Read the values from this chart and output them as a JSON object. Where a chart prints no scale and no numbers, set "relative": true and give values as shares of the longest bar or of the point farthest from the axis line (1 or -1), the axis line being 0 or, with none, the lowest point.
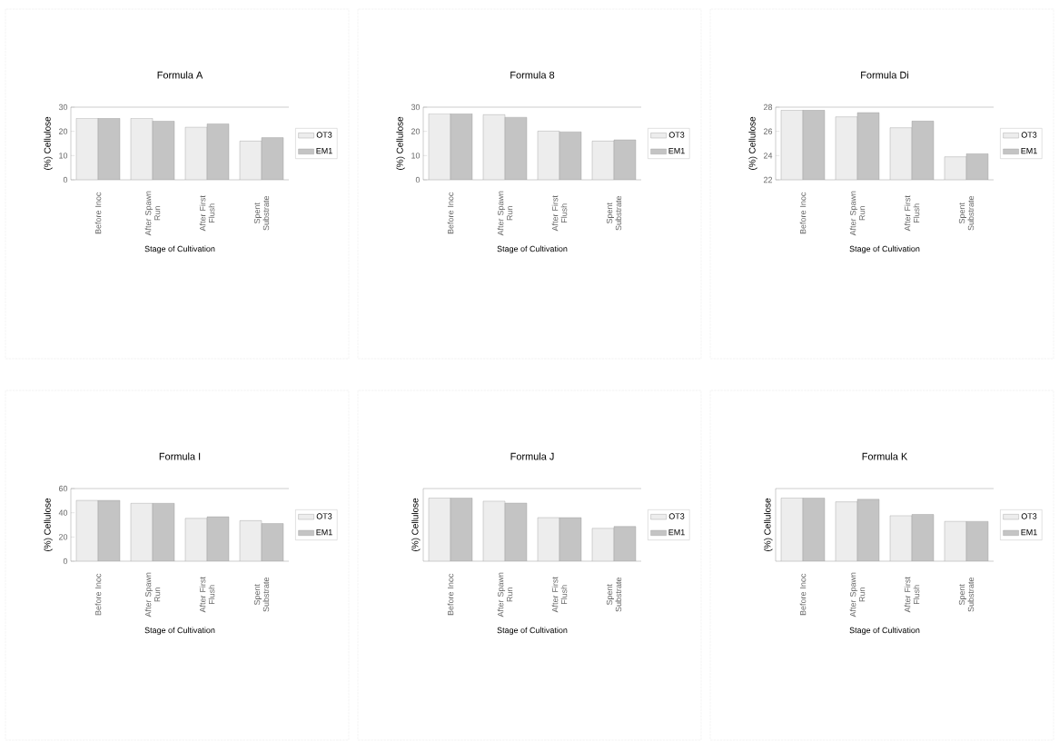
{
  "chart_data": [
    {
      "type": "bar",
      "title": "Formula A",
      "xlabel": "Stage of Cultivation",
      "ylabel": "(%) Cellulose",
      "categories": [
        "Before Inoc",
        "After Spawn Run",
        "After First Flush",
        "Spent Substrate"
      ],
      "legend": "right",
      "ylim": [
        0,
        30
      ],
      "yticks": [
        0,
        10,
        20,
        30
      ],
      "series": [
        {
          "name": "OT3",
          "color": "#ededed",
          "values": [
            25.4,
            25.4,
            21.7,
            16.0
          ]
        },
        {
          "name": "EM1",
          "color": "#c4c4c4",
          "values": [
            25.4,
            24.2,
            23.1,
            17.4
          ]
        }
      ]
    },
    {
      "type": "bar",
      "title": "Formula 8",
      "xlabel": "Stage of Cultivation",
      "ylabel": "(%) Cellulose",
      "categories": [
        "Before Inoc",
        "After Spawn Run",
        "After First Flush",
        "Spent Substrate"
      ],
      "legend": "right",
      "ylim": [
        0,
        30
      ],
      "yticks": [
        0,
        10,
        20,
        30
      ],
      "series": [
        {
          "name": "OT3",
          "color": "#ededed",
          "values": [
            27.3,
            26.9,
            20.1,
            16.0
          ]
        },
        {
          "name": "EM1",
          "color": "#c4c4c4",
          "values": [
            27.3,
            25.8,
            19.8,
            16.5
          ]
        }
      ]
    },
    {
      "type": "bar",
      "title": "Formula Di",
      "xlabel": "Stage of Cultivation",
      "ylabel": "(%) Cellulose",
      "categories": [
        "Before Inoc",
        "After Spawn Run",
        "After First Flush",
        "Spent Substrate"
      ],
      "legend": "right",
      "ylim": [
        22,
        28
      ],
      "yticks": [
        22,
        24,
        26,
        28
      ],
      "series": [
        {
          "name": "OT3",
          "color": "#ededed",
          "values": [
            27.75,
            27.2,
            26.3,
            23.9
          ]
        },
        {
          "name": "EM1",
          "color": "#c4c4c4",
          "values": [
            27.75,
            27.55,
            26.85,
            24.15
          ]
        }
      ]
    },
    {
      "type": "bar",
      "title": "Formula I",
      "xlabel": "Stage of Cultivation",
      "ylabel": "(%) Cellulose",
      "categories": [
        "Before Inoc",
        "After Spawn Run",
        "After First Flush",
        "Spent Substrate"
      ],
      "legend": "right",
      "ylim": [
        0,
        60
      ],
      "yticks": [
        0,
        20,
        40,
        60
      ],
      "series": [
        {
          "name": "OT3",
          "color": "#ededed",
          "values": [
            50.2,
            47.8,
            35.4,
            33.5
          ]
        },
        {
          "name": "EM1",
          "color": "#c4c4c4",
          "values": [
            50.2,
            47.8,
            36.7,
            31.1
          ]
        }
      ]
    },
    {
      "type": "bar",
      "title": "Formula J",
      "xlabel": "Stage of Cultivation",
      "ylabel": "(%) Cellulose",
      "categories": [
        "Before Inoc",
        "After Spawn Run",
        "After First Flush",
        "Spent Substrate"
      ],
      "legend": "right",
      "relative": true,
      "series": [
        {
          "name": "OT3",
          "color": "#ededed",
          "values": [
            1,
            0.95,
            0.69,
            0.52
          ]
        },
        {
          "name": "EM1",
          "color": "#c4c4c4",
          "values": [
            1,
            0.92,
            0.69,
            0.55
          ]
        }
      ]
    },
    {
      "type": "bar",
      "title": "Formula K",
      "xlabel": "Stage of Cultivation",
      "ylabel": "(%) Cellulose",
      "categories": [
        "Before Inoc",
        "After Spawn Run",
        "After First Flush",
        "Spent Substrate"
      ],
      "legend": "right",
      "relative": true,
      "series": [
        {
          "name": "OT3",
          "color": "#ededed",
          "values": [
            1,
            0.94,
            0.72,
            0.63
          ]
        },
        {
          "name": "EM1",
          "color": "#c4c4c4",
          "values": [
            1,
            0.98,
            0.74,
            0.63
          ]
        }
      ]
    }
  ]
}
